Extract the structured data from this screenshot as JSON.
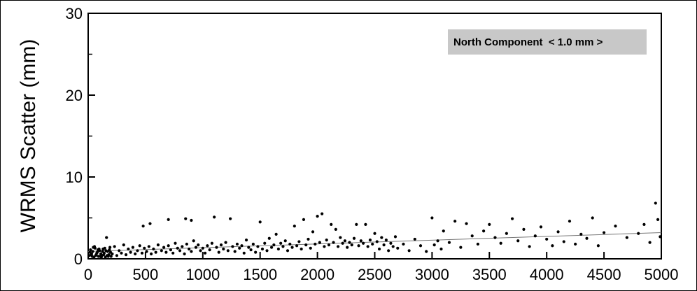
{
  "chart_data": {
    "type": "scatter",
    "title": "",
    "xlabel": "",
    "ylabel": "WRMS Scatter (mm)",
    "xlim": [
      0,
      5000
    ],
    "ylim": [
      0,
      30
    ],
    "xticks": [
      "0",
      "500",
      "1000",
      "1500",
      "2000",
      "2500",
      "3000",
      "3500",
      "4000",
      "4500",
      "5000"
    ],
    "yticks": [
      "0",
      "10",
      "20",
      "30"
    ],
    "grid": false,
    "annotation": "North Component  < 1.0 mm >",
    "annotation_position": "top-right",
    "trend_line": {
      "x": [
        0,
        5000
      ],
      "y": [
        0.9,
        3.2
      ]
    },
    "points": [
      [
        10,
        0.4
      ],
      [
        20,
        1.1
      ],
      [
        30,
        0.6
      ],
      [
        40,
        0.9
      ],
      [
        50,
        0.2
      ],
      [
        60,
        1.3
      ],
      [
        70,
        0.5
      ],
      [
        80,
        0.8
      ],
      [
        90,
        0.3
      ],
      [
        100,
        1.0
      ],
      [
        110,
        0.6
      ],
      [
        120,
        0.4
      ],
      [
        130,
        1.2
      ],
      [
        140,
        0.7
      ],
      [
        150,
        0.2
      ],
      [
        160,
        2.6
      ],
      [
        170,
        0.9
      ],
      [
        180,
        0.5
      ],
      [
        190,
        1.4
      ],
      [
        200,
        0.3
      ],
      [
        15,
        0.8
      ],
      [
        35,
        0.3
      ],
      [
        55,
        1.5
      ],
      [
        75,
        0.7
      ],
      [
        95,
        1.2
      ],
      [
        115,
        0.2
      ],
      [
        135,
        0.5
      ],
      [
        155,
        1.0
      ],
      [
        175,
        0.3
      ],
      [
        195,
        0.8
      ],
      [
        25,
        0.5
      ],
      [
        45,
        1.4
      ],
      [
        65,
        0.4
      ],
      [
        85,
        1.1
      ],
      [
        105,
        0.3
      ],
      [
        125,
        0.9
      ],
      [
        145,
        1.3
      ],
      [
        165,
        0.4
      ],
      [
        185,
        1.1
      ],
      [
        210,
        0.6
      ],
      [
        230,
        1.5
      ],
      [
        250,
        0.4
      ],
      [
        270,
        1.0
      ],
      [
        290,
        0.7
      ],
      [
        310,
        1.7
      ],
      [
        330,
        0.5
      ],
      [
        350,
        1.2
      ],
      [
        370,
        0.8
      ],
      [
        390,
        1.4
      ],
      [
        410,
        0.6
      ],
      [
        430,
        1.0
      ],
      [
        450,
        1.6
      ],
      [
        470,
        0.7
      ],
      [
        490,
        1.3
      ],
      [
        510,
        0.9
      ],
      [
        530,
        1.5
      ],
      [
        550,
        0.6
      ],
      [
        570,
        1.2
      ],
      [
        590,
        0.8
      ],
      [
        610,
        1.7
      ],
      [
        480,
        4.0
      ],
      [
        540,
        4.3
      ],
      [
        640,
        1.0
      ],
      [
        660,
        1.4
      ],
      [
        680,
        0.8
      ],
      [
        700,
        1.6
      ],
      [
        720,
        1.1
      ],
      [
        740,
        0.7
      ],
      [
        760,
        1.9
      ],
      [
        780,
        1.3
      ],
      [
        800,
        1.0
      ],
      [
        820,
        1.5
      ],
      [
        840,
        0.6
      ],
      [
        860,
        1.8
      ],
      [
        880,
        1.2
      ],
      [
        900,
        0.9
      ],
      [
        920,
        2.2
      ],
      [
        940,
        1.4
      ],
      [
        960,
        1.7
      ],
      [
        980,
        1.0
      ],
      [
        700,
        4.8
      ],
      [
        850,
        4.9
      ],
      [
        900,
        4.7
      ],
      [
        1000,
        1.3
      ],
      [
        1020,
        0.7
      ],
      [
        1040,
        1.6
      ],
      [
        1060,
        1.1
      ],
      [
        1080,
        1.9
      ],
      [
        1100,
        5.1
      ],
      [
        1120,
        1.4
      ],
      [
        1140,
        0.8
      ],
      [
        1160,
        1.7
      ],
      [
        1180,
        1.2
      ],
      [
        1200,
        2.0
      ],
      [
        1220,
        1.0
      ],
      [
        1240,
        4.9
      ],
      [
        1260,
        1.5
      ],
      [
        1280,
        0.9
      ],
      [
        1300,
        1.8
      ],
      [
        1320,
        1.3
      ],
      [
        1340,
        1.6
      ],
      [
        1360,
        0.7
      ],
      [
        1380,
        2.3
      ],
      [
        1400,
        1.4
      ],
      [
        1420,
        1.1
      ],
      [
        1440,
        1.8
      ],
      [
        1460,
        0.8
      ],
      [
        1480,
        1.5
      ],
      [
        1500,
        4.5
      ],
      [
        1520,
        1.2
      ],
      [
        1540,
        1.9
      ],
      [
        1560,
        1.0
      ],
      [
        1580,
        2.5
      ],
      [
        1600,
        1.4
      ],
      [
        1620,
        1.7
      ],
      [
        1640,
        3.0
      ],
      [
        1660,
        1.2
      ],
      [
        1680,
        1.9
      ],
      [
        1700,
        1.5
      ],
      [
        1720,
        2.2
      ],
      [
        1740,
        1.0
      ],
      [
        1760,
        1.8
      ],
      [
        1780,
        1.4
      ],
      [
        1800,
        4.0
      ],
      [
        1820,
        1.6
      ],
      [
        1840,
        2.1
      ],
      [
        1860,
        1.2
      ],
      [
        1880,
        4.8
      ],
      [
        1900,
        1.7
      ],
      [
        1920,
        2.4
      ],
      [
        1940,
        1.3
      ],
      [
        1960,
        3.3
      ],
      [
        1980,
        1.8
      ],
      [
        2000,
        5.2
      ],
      [
        2020,
        2.0
      ],
      [
        2040,
        5.5
      ],
      [
        2060,
        1.5
      ],
      [
        2080,
        2.3
      ],
      [
        2100,
        1.7
      ],
      [
        2120,
        4.2
      ],
      [
        2140,
        2.0
      ],
      [
        2160,
        3.6
      ],
      [
        2180,
        1.5
      ],
      [
        2200,
        2.6
      ],
      [
        2220,
        1.9
      ],
      [
        2240,
        2.2
      ],
      [
        2260,
        1.4
      ],
      [
        2280,
        2.0
      ],
      [
        2300,
        1.7
      ],
      [
        2320,
        2.5
      ],
      [
        2340,
        4.2
      ],
      [
        2360,
        1.6
      ],
      [
        2380,
        2.2
      ],
      [
        2400,
        1.9
      ],
      [
        2420,
        4.2
      ],
      [
        2440,
        1.5
      ],
      [
        2460,
        2.3
      ],
      [
        2480,
        1.8
      ],
      [
        2500,
        3.1
      ],
      [
        2520,
        2.1
      ],
      [
        2540,
        1.2
      ],
      [
        2560,
        2.6
      ],
      [
        2580,
        1.7
      ],
      [
        2600,
        2.3
      ],
      [
        2620,
        1.0
      ],
      [
        2640,
        1.9
      ],
      [
        2660,
        1.5
      ],
      [
        2680,
        2.7
      ],
      [
        2700,
        1.3
      ],
      [
        2750,
        1.8
      ],
      [
        2800,
        1.0
      ],
      [
        2850,
        2.4
      ],
      [
        2900,
        1.6
      ],
      [
        2950,
        0.9
      ],
      [
        3000,
        5.0
      ],
      [
        3020,
        1.7
      ],
      [
        3050,
        2.2
      ],
      [
        3080,
        1.2
      ],
      [
        3100,
        3.4
      ],
      [
        3150,
        2.0
      ],
      [
        3200,
        4.6
      ],
      [
        3250,
        1.4
      ],
      [
        3300,
        4.3
      ],
      [
        3350,
        2.8
      ],
      [
        3400,
        1.8
      ],
      [
        3450,
        3.4
      ],
      [
        3500,
        4.2
      ],
      [
        3550,
        2.6
      ],
      [
        3600,
        1.9
      ],
      [
        3650,
        3.1
      ],
      [
        3700,
        4.9
      ],
      [
        3750,
        2.2
      ],
      [
        3800,
        3.6
      ],
      [
        3850,
        1.5
      ],
      [
        3900,
        2.8
      ],
      [
        3950,
        3.9
      ],
      [
        4000,
        2.4
      ],
      [
        4050,
        1.6
      ],
      [
        4100,
        3.3
      ],
      [
        4150,
        2.1
      ],
      [
        4200,
        4.6
      ],
      [
        4250,
        1.8
      ],
      [
        4300,
        3.0
      ],
      [
        4350,
        2.5
      ],
      [
        4400,
        5.0
      ],
      [
        4450,
        1.6
      ],
      [
        4500,
        3.2
      ],
      [
        4600,
        4.0
      ],
      [
        4700,
        2.6
      ],
      [
        4800,
        3.1
      ],
      [
        4850,
        4.2
      ],
      [
        4900,
        2.0
      ],
      [
        4950,
        6.8
      ],
      [
        4970,
        4.8
      ],
      [
        4990,
        2.7
      ]
    ]
  }
}
